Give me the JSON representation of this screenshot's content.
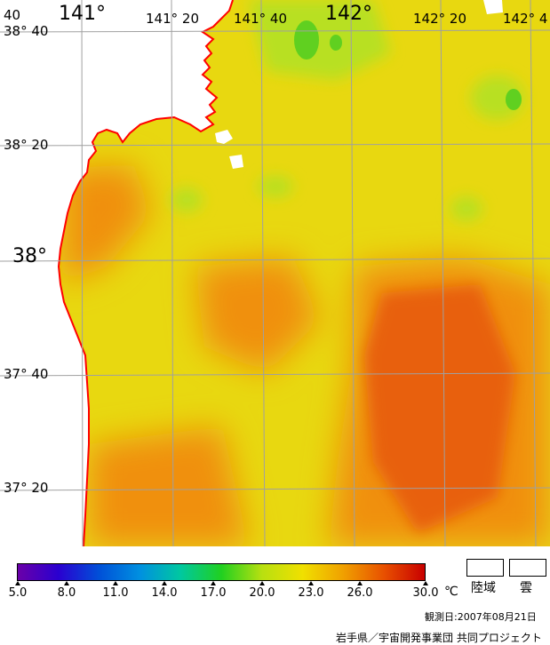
{
  "map": {
    "lon_labels": [
      "40",
      "141°",
      "141° 20",
      "141° 40",
      "142°",
      "142° 20",
      "142° 4"
    ],
    "lat_labels": [
      "38° 40",
      "38° 20",
      "38°",
      "37° 40",
      "37° 20"
    ],
    "colors": {
      "coast": "#ff0000",
      "grid": "#a0a0a0",
      "land": "#ffffff",
      "sst_base": "#e8d810",
      "sst_warm": "#f09010",
      "sst_hot": "#e86010",
      "sst_cool": "#b8e020",
      "sst_cold": "#60d020"
    }
  },
  "legend": {
    "ticks": [
      "5.0",
      "8.0",
      "11.0",
      "14.0",
      "17.0",
      "20.0",
      "23.0",
      "26.0",
      "30.0"
    ],
    "unit": "℃",
    "land_label": "陸域",
    "cloud_label": "雲",
    "gradient_colors": [
      "#6a00a8",
      "#2a00d0",
      "#0050d8",
      "#0090e0",
      "#00c8a0",
      "#20d020",
      "#b8e010",
      "#f0e000",
      "#f0a000",
      "#e85000",
      "#c80000"
    ]
  },
  "footer": {
    "date": "観測日:2007年08月21日",
    "credit": "岩手県／宇宙開発事業団 共同プロジェクト"
  }
}
